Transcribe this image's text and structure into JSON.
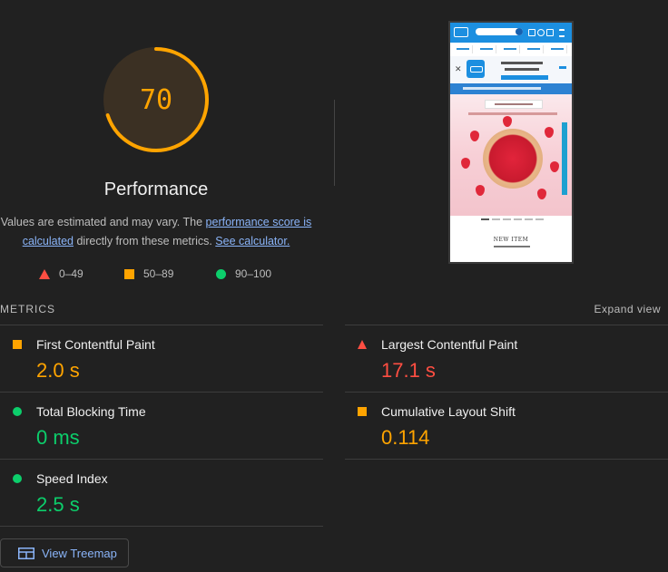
{
  "performance": {
    "score": "70",
    "score_value": 70,
    "title": "Performance",
    "desc_prefix": "Values are estimated and may vary. The ",
    "desc_link1": "performance score is calculated",
    "desc_middle": " directly from these metrics. ",
    "desc_link2": "See calculator.",
    "gauge_color": "#ffa400"
  },
  "legend": [
    {
      "shape": "triangle",
      "label": "0–49",
      "color": "#ff4e42"
    },
    {
      "shape": "square",
      "label": "50–89",
      "color": "#ffa400"
    },
    {
      "shape": "circle",
      "label": "90–100",
      "color": "#0cce6b"
    }
  ],
  "metrics": {
    "label": "METRICS",
    "expand": "Expand view",
    "items": [
      {
        "name": "First Contentful Paint",
        "value": "2.0 s",
        "status": "orange"
      },
      {
        "name": "Largest Contentful Paint",
        "value": "17.1 s",
        "status": "red"
      },
      {
        "name": "Total Blocking Time",
        "value": "0 ms",
        "status": "green"
      },
      {
        "name": "Cumulative Layout Shift",
        "value": "0.114",
        "status": "orange"
      },
      {
        "name": "Speed Index",
        "value": "2.5 s",
        "status": "green"
      }
    ]
  },
  "screenshot": {
    "new_item": "NEW ITEM"
  },
  "treemap": {
    "label": "View Treemap",
    "icon": "treemap-icon"
  }
}
